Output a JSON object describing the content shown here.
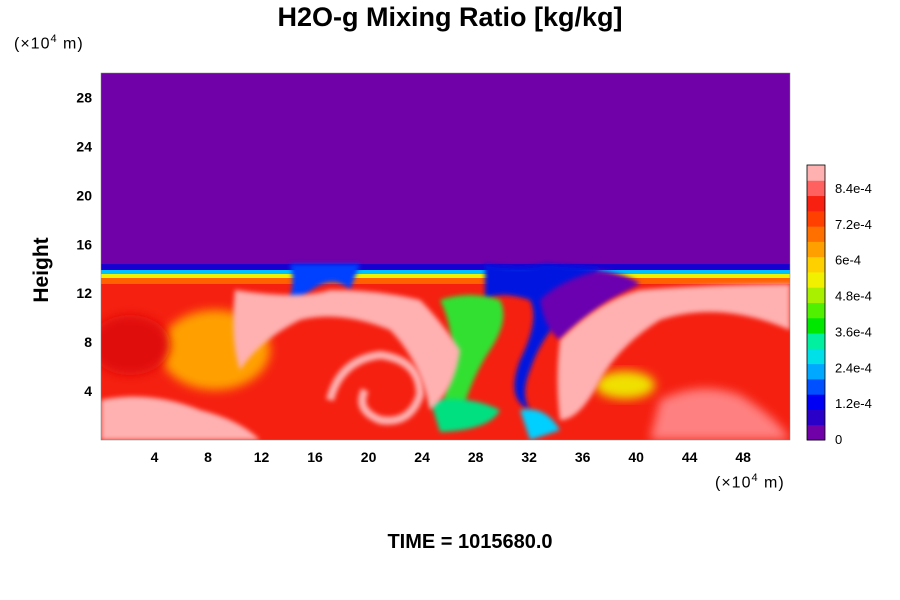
{
  "chart_data": {
    "type": "heatmap",
    "title": "H2O-g Mixing Ratio [kg/kg]",
    "xlabel": "",
    "ylabel": "Height",
    "x_unit": [
      "(×10",
      "4",
      " m)"
    ],
    "y_unit": [
      "(×10",
      "4",
      " m)"
    ],
    "xlim": [
      0,
      51.5
    ],
    "ylim": [
      0,
      30
    ],
    "x_ticks": [
      4,
      8,
      12,
      16,
      20,
      24,
      28,
      32,
      36,
      40,
      44,
      48
    ],
    "y_ticks": [
      4,
      8,
      12,
      16,
      20,
      24,
      28
    ],
    "colorbar": {
      "range": [
        0,
        0.00092
      ],
      "labels": [
        "0",
        "1.2e-4",
        "2.4e-4",
        "3.6e-4",
        "4.8e-4",
        "6e-4",
        "7.2e-4",
        "8.4e-4"
      ],
      "label_values": [
        0,
        0.00012,
        0.00024,
        0.00036,
        0.00048,
        0.0006,
        0.00072,
        0.00084
      ],
      "colors": [
        "#7000a8",
        "#2a00c8",
        "#0000f5",
        "#0050ff",
        "#00a8ff",
        "#00e0e8",
        "#00f0a0",
        "#00e800",
        "#50f000",
        "#a8f000",
        "#f0f000",
        "#ffd000",
        "#ffa000",
        "#ff7000",
        "#ff4000",
        "#f82010",
        "#ff6060",
        "#ffb0b0"
      ]
    },
    "field_summary": {
      "background_level_above_cloud": 0,
      "moist_layer_top_km_e4": 13
    },
    "time_text": "TIME = 1015680.0"
  }
}
